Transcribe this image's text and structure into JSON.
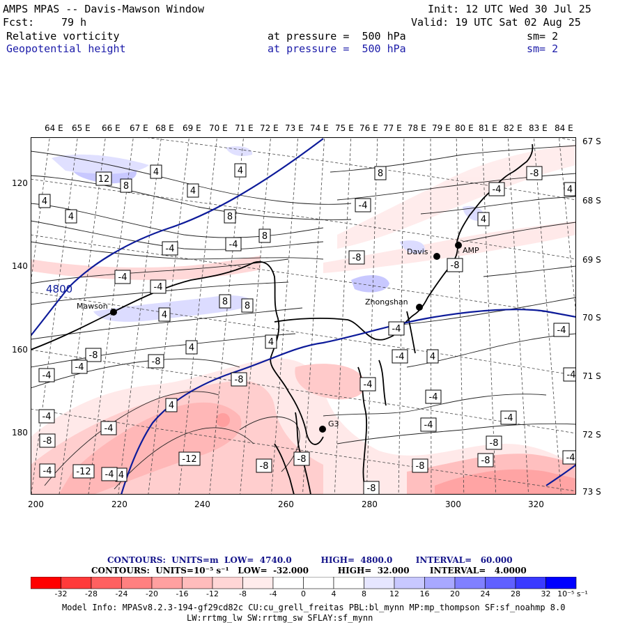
{
  "header": {
    "title": "AMPS MPAS -- Davis-Mawson Window",
    "forecast_label": "Fcst:",
    "forecast_hours": "79 h",
    "init": "Init: 12 UTC Wed 30 Jul 25",
    "valid": "Valid: 19 UTC Sat 02 Aug 25",
    "field1": {
      "name": "Relative vorticity",
      "level": "at pressure =  500 hPa",
      "sm": "sm= 2"
    },
    "field2": {
      "name": "Geopotential height",
      "level": "at pressure =  500 hPa",
      "sm": "sm= 2"
    }
  },
  "map": {
    "top_lon_labels": [
      "64 E",
      "65 E",
      "66 E",
      "67 E",
      "68 E",
      "69 E",
      "70 E",
      "71 E",
      "72 E",
      "73 E",
      "74 E",
      "75 E",
      "76 E",
      "77 E",
      "78 E",
      "79 E",
      "80 E",
      "81 E",
      "82 E",
      "83 E",
      "84 E"
    ],
    "right_lat_labels": [
      "67 S",
      "68 S",
      "69 S",
      "70 S",
      "71 S",
      "72 S",
      "73 S"
    ],
    "x_ticks": [
      "200",
      "220",
      "240",
      "260",
      "280",
      "300",
      "320"
    ],
    "y_ticks": [
      "120",
      "140",
      "160",
      "180"
    ],
    "height_label": "4800",
    "stations": [
      {
        "name": "Mawson"
      },
      {
        "name": "Zhongshan"
      },
      {
        "name": "Davis"
      },
      {
        "name": "AMP"
      },
      {
        "name": "G3"
      }
    ],
    "contour_labels": [
      "12",
      "8",
      "4",
      "4",
      "8",
      "4",
      "4",
      "4",
      "8",
      "-4",
      "-4",
      "4",
      "8",
      "-4",
      "-8",
      "-8",
      "-8",
      "-4",
      "-4",
      "8",
      "4",
      "8",
      "-8",
      "-4",
      "4",
      "-8",
      "-4",
      "4",
      "-8",
      "-4",
      "4",
      "-12",
      "-4",
      "4",
      "-8",
      "-4",
      "-4",
      "-12",
      "-8",
      "-8",
      "-4",
      "-8",
      "-4",
      "-4",
      "-4",
      "-8",
      "-4",
      "-8",
      "-8",
      "-4",
      "-4",
      "4",
      "-4",
      "-4",
      "-4",
      "4"
    ],
    "shading": {
      "negative_color": "#e83030",
      "positive_color": "#2020e0"
    }
  },
  "contour_info": {
    "line1": "CONTOURS:  UNITS=m  LOW=  4740.0          HIGH=  4800.0        INTERVAL=   60.000",
    "line2": "CONTOURS:  UNITS=10⁻⁵ s⁻¹   LOW=  -32.000          HIGH=  32.000       INTERVAL=   4.0000"
  },
  "colorbar": {
    "labels": [
      "-32",
      "-28",
      "-24",
      "-20",
      "-16",
      "-12",
      "-8",
      "-4",
      "0",
      "4",
      "8",
      "12",
      "16",
      "20",
      "24",
      "28",
      "32"
    ],
    "unit": "10⁻⁵ s⁻¹",
    "colors": [
      "#ff0000",
      "#ff3a3a",
      "#ff6060",
      "#ff8080",
      "#ffa0a0",
      "#ffbcbc",
      "#ffd6d6",
      "#ffecec",
      "#ffffff",
      "#ffffff",
      "#e6e6ff",
      "#c8c8ff",
      "#a8a8ff",
      "#8080ff",
      "#6060ff",
      "#3a3aff",
      "#0000ff"
    ]
  },
  "model_info": {
    "line1": "Model Info: MPASv8.2.3-194-gf29cd82c CU:cu_grell_freitas PBL:bl_mynn MP:mp_thompson SF:sf_noahmp 8.0",
    "line2": "LW:rrtmg_lw SW:rrtmg_sw SFLAY:sf_mynn"
  }
}
